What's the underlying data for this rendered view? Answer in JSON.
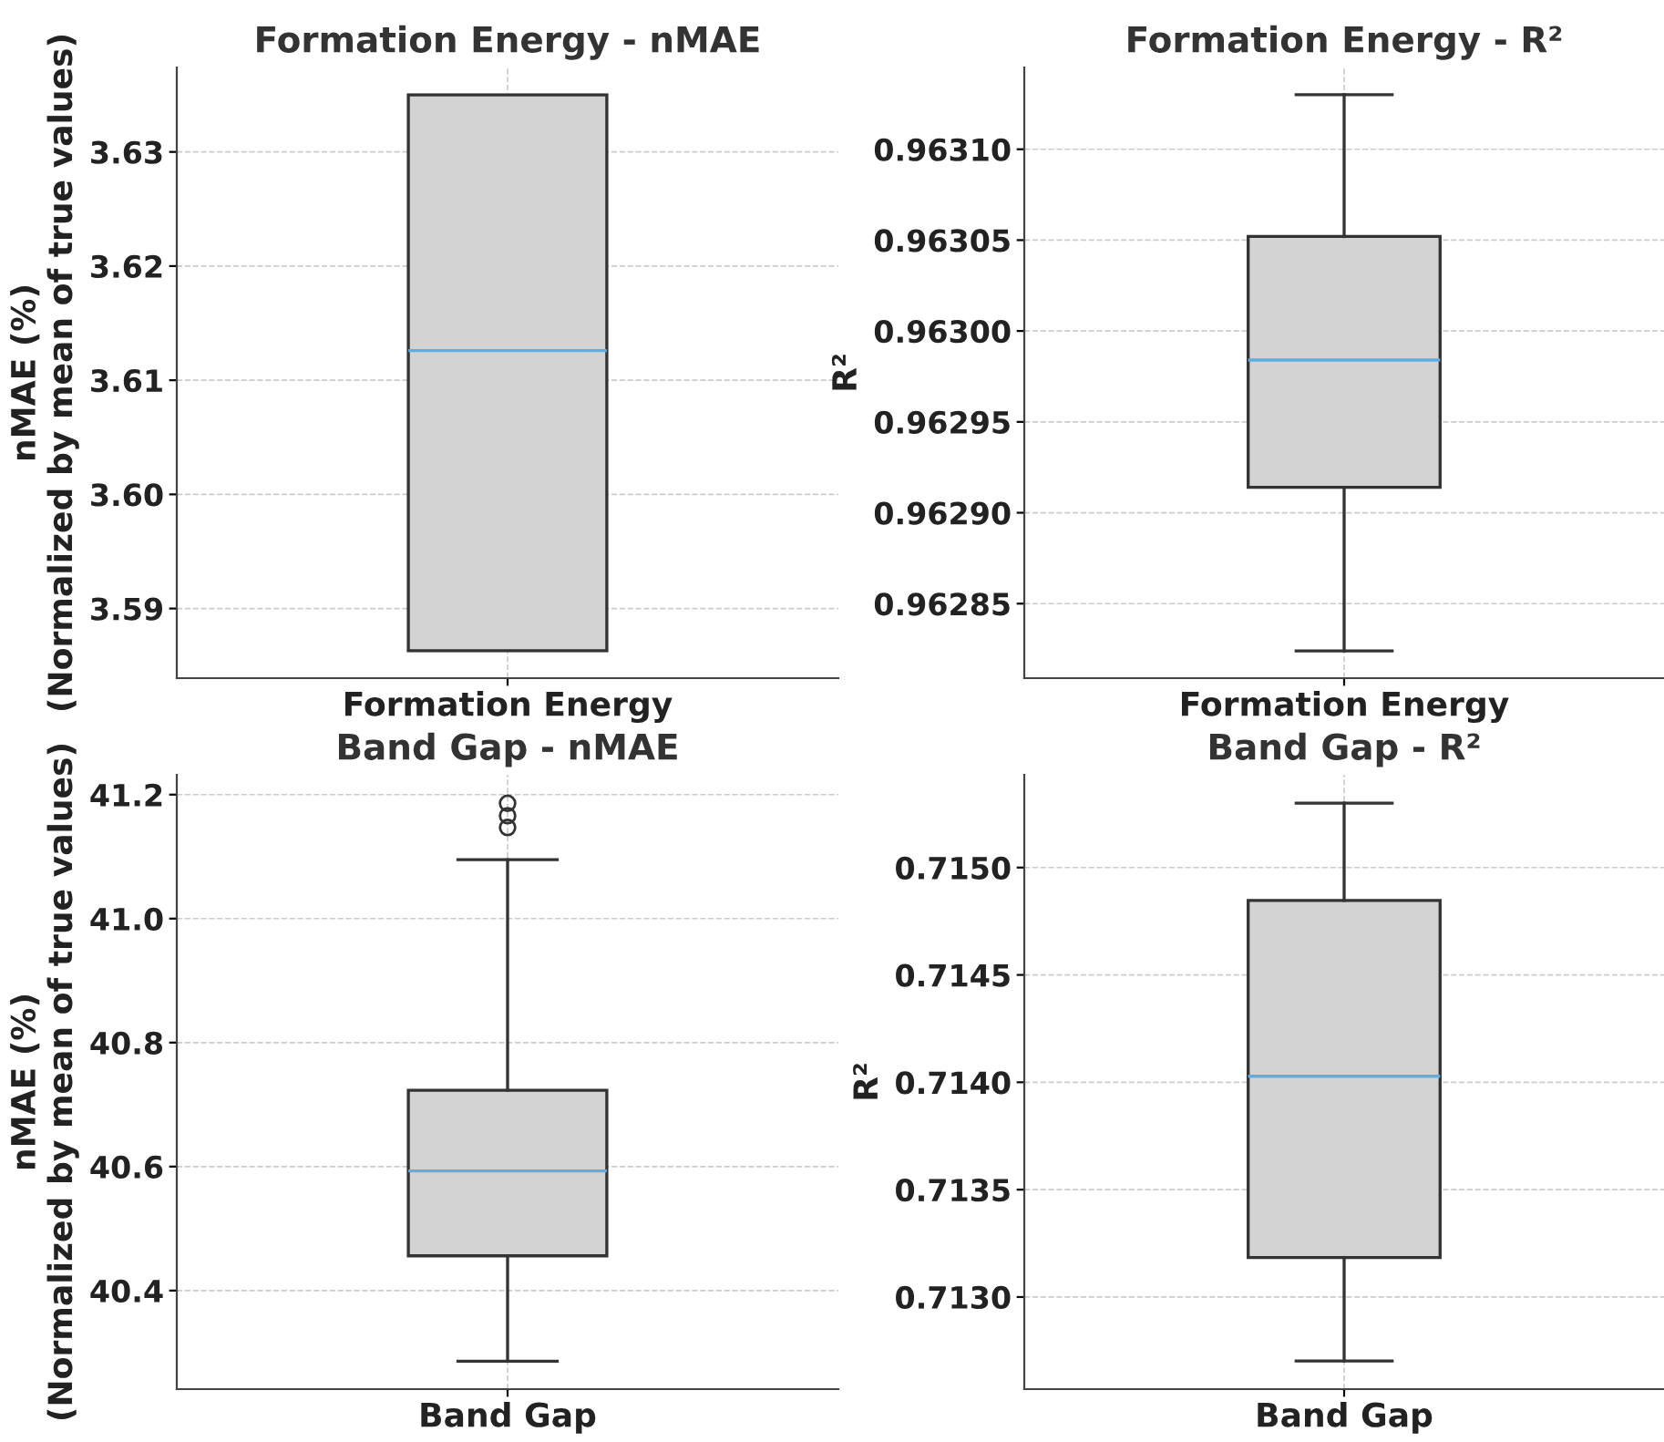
{
  "chart_data": [
    {
      "type": "box",
      "title": "Formation Energy - nMAE",
      "ylabel": "nMAE (%)\n(Normalized by mean of true values)",
      "categories": [
        "Formation Energy"
      ],
      "ylim": [
        3.5839,
        3.6374
      ],
      "yticks": [
        3.59,
        {
          "value": 3.6,
          "label": "3.60"
        },
        3.61,
        3.62,
        3.63
      ],
      "grid": true,
      "series": [
        {
          "color": "#d3d3d3",
          "boxes": [
            {
              "low": 3.5863,
              "q1": 3.5863,
              "median": 3.6126,
              "q3": 3.635,
              "high": 3.635
            }
          ]
        }
      ]
    },
    {
      "type": "box",
      "title": "Formation Energy - R²",
      "ylabel": "R²",
      "categories": [
        "Formation Energy"
      ],
      "ylim": [
        0.962809,
        0.963145
      ],
      "yticks": [
        {
          "value": 0.96285,
          "label": "0.96285"
        },
        {
          "value": 0.9629,
          "label": "0.96290"
        },
        {
          "value": 0.96295,
          "label": "0.96295"
        },
        {
          "value": 0.963,
          "label": "0.96300"
        },
        {
          "value": 0.96305,
          "label": "0.96305"
        },
        {
          "value": 0.9631,
          "label": "0.96310"
        }
      ],
      "grid": true,
      "series": [
        {
          "color": "#d3d3d3",
          "boxes": [
            {
              "low": 0.962824,
              "q1": 0.962914,
              "median": 0.962984,
              "q3": 0.963052,
              "high": 0.96313
            }
          ]
        }
      ]
    },
    {
      "type": "box",
      "title": "Band Gap - nMAE",
      "ylabel": "nMAE (%)\n(Normalized by mean of true values)",
      "categories": [
        "Band Gap"
      ],
      "ylim": [
        40.241,
        41.232
      ],
      "yticks": [
        {
          "value": 40.4,
          "label": "40.4"
        },
        {
          "value": 40.6,
          "label": "40.6"
        },
        {
          "value": 40.8,
          "label": "40.8"
        },
        {
          "value": 41.0,
          "label": "41.0"
        },
        {
          "value": 41.2,
          "label": "41.2"
        }
      ],
      "grid": true,
      "series": [
        {
          "color": "#d3d3d3",
          "boxes": [
            {
              "low": 40.286,
              "q1": 40.456,
              "median": 40.593,
              "q3": 40.723,
              "high": 41.095,
              "outliers": [
                41.147,
                41.166,
                41.186
              ]
            }
          ]
        }
      ]
    },
    {
      "type": "box",
      "title": "Band Gap - R²",
      "ylabel": "R²",
      "categories": [
        "Band Gap"
      ],
      "ylim": [
        0.712571,
        0.715432
      ],
      "yticks": [
        {
          "value": 0.713,
          "label": "0.7130"
        },
        {
          "value": 0.7135,
          "label": "0.7135"
        },
        {
          "value": 0.714,
          "label": "0.7140"
        },
        {
          "value": 0.7145,
          "label": "0.7145"
        },
        {
          "value": 0.715,
          "label": "0.7150"
        }
      ],
      "grid": true,
      "series": [
        {
          "color": "#d3d3d3",
          "boxes": [
            {
              "low": 0.712702,
              "q1": 0.713184,
              "median": 0.714028,
              "q3": 0.714847,
              "high": 0.7153
            }
          ]
        }
      ]
    }
  ]
}
